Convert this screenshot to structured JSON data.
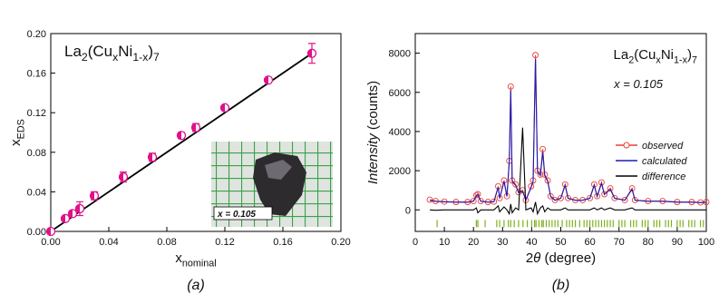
{
  "chart_data": [
    {
      "type": "scatter",
      "title": [
        {
          "text": "La"
        },
        {
          "text": "2",
          "sub": true
        },
        {
          "text": "(Cu"
        },
        {
          "text": "x",
          "sub": true
        },
        {
          "text": "Ni"
        },
        {
          "text": "1-x",
          "sub": true
        },
        {
          "text": ")"
        },
        {
          "text": "7",
          "sub": true
        }
      ],
      "x_label": [
        {
          "text": "x"
        },
        {
          "text": "nominal",
          "sub": true
        }
      ],
      "y_label": [
        {
          "text": "x"
        },
        {
          "text": "EDS",
          "sub": true
        }
      ],
      "caption": "(a)",
      "x": [
        0,
        0.01,
        0.015,
        0.02,
        0.03,
        0.05,
        0.07,
        0.09,
        0.1,
        0.12,
        0.15,
        0.18
      ],
      "values": [
        0,
        0.013,
        0.018,
        0.023,
        0.036,
        0.055,
        0.075,
        0.097,
        0.105,
        0.125,
        0.153,
        0.18
      ],
      "errors": [
        0.001,
        0.002,
        0.003,
        0.007,
        0.004,
        0.005,
        0.004,
        0.003,
        0.004,
        0.002,
        0.002,
        0.01
      ],
      "color": "#e0118a",
      "fit": {
        "x": [
          0,
          0.18
        ],
        "values": [
          0,
          0.18
        ],
        "color": "#000000"
      },
      "xlim": [
        0,
        0.2
      ],
      "ylim": [
        0,
        0.2
      ],
      "xticks": [
        {
          "value": 0,
          "label": "0.00"
        },
        0.04,
        0.08,
        0.12,
        0.16,
        {
          "value": 0.2,
          "label": "0.20"
        }
      ],
      "yticks": [
        {
          "value": 0,
          "label": "0.00"
        },
        0.04,
        0.08,
        0.12,
        0.16,
        {
          "value": 0.2,
          "label": "0.20"
        }
      ],
      "inset_label": "x = 0.105"
    },
    {
      "type": "line",
      "title": [
        {
          "text": "La"
        },
        {
          "text": "2",
          "sub": true
        },
        {
          "text": "(Cu"
        },
        {
          "text": "x",
          "sub": true
        },
        {
          "text": "Ni"
        },
        {
          "text": "1-x",
          "sub": true
        },
        {
          "text": ")"
        },
        {
          "text": "7",
          "sub": true
        }
      ],
      "annotation": "x = 0.105",
      "x_label": [
        {
          "text": "2"
        },
        {
          "text": "θ",
          "italic": true
        },
        {
          "text": " (degree)"
        }
      ],
      "y_label": [
        {
          "text": "Intensity",
          "italic": true
        },
        {
          "text": " (counts)"
        }
      ],
      "caption": "(b)",
      "x": [
        5,
        7,
        10,
        14,
        18,
        20,
        21,
        21.5,
        22.5,
        25,
        27,
        28.5,
        29,
        30.5,
        31.5,
        32.3,
        32.8,
        33.3,
        34.5,
        35.5,
        36.9,
        38,
        39.8,
        40.5,
        41.3,
        42,
        43,
        43.8,
        44.5,
        45.5,
        46.5,
        48,
        50,
        51.5,
        52.5,
        55,
        57.5,
        60,
        61.5,
        62.5,
        64,
        65,
        67,
        68.5,
        72,
        74.5,
        75.5,
        80,
        85,
        90,
        95,
        98,
        100
      ],
      "series": [
        {
          "name": "observed",
          "color": "#e8413c",
          "markers": true,
          "values": [
            520,
            450,
            420,
            400,
            400,
            450,
            750,
            800,
            450,
            400,
            420,
            1200,
            600,
            1500,
            700,
            2500,
            6300,
            1500,
            1300,
            900,
            1000,
            500,
            1200,
            1500,
            7900,
            2000,
            1800,
            3100,
            1800,
            1500,
            700,
            500,
            600,
            1300,
            600,
            500,
            500,
            600,
            1300,
            700,
            1400,
            800,
            1100,
            600,
            500,
            1100,
            500,
            450,
            450,
            400,
            400,
            380,
            400
          ]
        },
        {
          "name": "calculated",
          "color": "#1c1cb4",
          "markers": false,
          "values": [
            480,
            430,
            410,
            390,
            390,
            440,
            700,
            780,
            440,
            390,
            410,
            1150,
            580,
            1450,
            680,
            2450,
            6100,
            1450,
            1250,
            880,
            950,
            490,
            1150,
            1450,
            7700,
            1950,
            1750,
            2950,
            1750,
            1450,
            680,
            490,
            590,
            1250,
            590,
            490,
            490,
            590,
            1250,
            680,
            1350,
            780,
            1050,
            590,
            490,
            1050,
            490,
            440,
            440,
            390,
            390,
            370,
            390
          ]
        },
        {
          "name": "difference",
          "color": "#000000",
          "markers": false,
          "values": [
            0,
            -20,
            0,
            0,
            0,
            0,
            100,
            -150,
            0,
            0,
            0,
            200,
            -100,
            150,
            0,
            -200,
            300,
            -150,
            100,
            0,
            4200,
            0,
            100,
            -100,
            400,
            -200,
            100,
            200,
            -100,
            100,
            0,
            0,
            0,
            100,
            0,
            0,
            0,
            0,
            100,
            0,
            100,
            0,
            100,
            0,
            0,
            100,
            0,
            0,
            0,
            0,
            0,
            0,
            0
          ]
        }
      ],
      "bragg_positions": [
        7.5,
        21,
        21.5,
        24,
        28,
        29,
        30.5,
        32,
        32.8,
        34,
        35.5,
        37,
        38.5,
        40,
        41,
        41.5,
        42.5,
        43.5,
        44,
        45,
        46,
        47,
        48,
        49,
        50.5,
        52,
        53,
        54,
        55,
        56.5,
        58,
        59,
        60,
        61,
        62,
        63,
        64,
        65,
        66,
        67,
        68,
        70,
        71,
        72,
        74,
        75,
        76,
        78,
        79,
        80,
        82,
        83,
        84,
        86,
        87,
        88,
        90,
        91,
        92,
        94,
        95,
        96,
        98,
        99
      ],
      "bragg_level": -700,
      "bragg_color": "#7fb020",
      "xlim": [
        0,
        100
      ],
      "ylim": [
        -1100,
        9000
      ],
      "xticks": [
        0,
        10,
        20,
        30,
        40,
        50,
        60,
        70,
        80,
        90,
        100
      ],
      "yticks": [
        0,
        2000,
        4000,
        6000,
        8000
      ],
      "legend": "right"
    }
  ]
}
